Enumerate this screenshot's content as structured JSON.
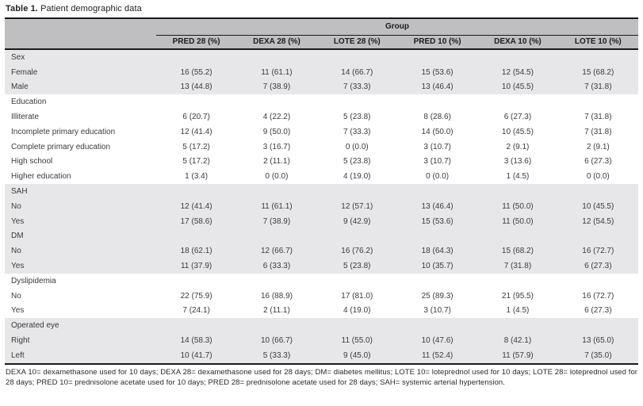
{
  "title": {
    "prefix": "Table 1.",
    "text": " Patient demographic data"
  },
  "table": {
    "group_header": "Group",
    "columns": [
      "PRED 28 (%)",
      "DEXA 28 (%)",
      "LOTE 28 (%)",
      "PRED 10 (%)",
      "DEXA 10 (%)",
      "LOTE 10 (%)"
    ],
    "sections": [
      {
        "name": "Sex",
        "shade": "gray",
        "rows": [
          {
            "label": "Female",
            "values": [
              "16 (55.2)",
              "11 (61.1)",
              "14 (66.7)",
              "15 (53.6)",
              "12 (54.5)",
              "15 (68.2)"
            ]
          },
          {
            "label": "Male",
            "values": [
              "13 (44.8)",
              "7 (38.9)",
              "7 (33.3)",
              "13 (46.4)",
              "10 (45.5)",
              "7 (31.8)"
            ]
          }
        ]
      },
      {
        "name": "Education",
        "shade": "white",
        "rows": [
          {
            "label": "Illiterate",
            "values": [
              "6 (20.7)",
              "4 (22.2)",
              "5 (23.8)",
              "8 (28.6)",
              "6 (27.3)",
              "7 (31.8)"
            ]
          },
          {
            "label": "Incomplete primary education",
            "values": [
              "12 (41.4)",
              "9 (50.0)",
              "7 (33.3)",
              "14 (50.0)",
              "10 (45.5)",
              "7 (31.8)"
            ]
          },
          {
            "label": "Complete primary education",
            "values": [
              "5 (17.2)",
              "3 (16.7)",
              "0 (0.0)",
              "3 (10.7)",
              "2 (9.1)",
              "2 (9.1)"
            ]
          },
          {
            "label": "High school",
            "values": [
              "5 (17.2)",
              "2 (11.1)",
              "5 (23.8)",
              "3 (10.7)",
              "3 (13.6)",
              "6 (27.3)"
            ]
          },
          {
            "label": "Higher education",
            "values": [
              "1 (3.4)",
              "0 (0.0)",
              "4 (19.0)",
              "0 (0.0)",
              "1 (4.5)",
              "0 (0.0)"
            ]
          }
        ]
      },
      {
        "name": "SAH",
        "shade": "gray",
        "rows": [
          {
            "label": "No",
            "values": [
              "12 (41.4)",
              "11 (61.1)",
              "12 (57.1)",
              "13 (46.4)",
              "11 (50.0)",
              "10 (45.5)"
            ]
          },
          {
            "label": "Yes",
            "values": [
              "17 (58.6)",
              "7 (38.9)",
              "9 (42.9)",
              "15 (53.6)",
              "11 (50.0)",
              "12 (54.5)"
            ]
          }
        ]
      },
      {
        "name": "DM",
        "shade": "gray",
        "rows": [
          {
            "label": "No",
            "values": [
              "18 (62.1)",
              "12 (66.7)",
              "16 (76.2)",
              "18 (64.3)",
              "15 (68.2)",
              "16 (72.7)"
            ]
          },
          {
            "label": "Yes",
            "values": [
              "11 (37.9)",
              "6 (33.3)",
              "5 (23.8)",
              "10 (35.7)",
              "7 (31.8)",
              "6 (27.3)"
            ]
          }
        ]
      },
      {
        "name": "Dyslipidemia",
        "shade": "white",
        "rows": [
          {
            "label": "No",
            "values": [
              "22 (75.9)",
              "16 (88.9)",
              "17 (81.0)",
              "25 (89.3)",
              "21 (95.5)",
              "16 (72.7)"
            ]
          },
          {
            "label": "Yes",
            "values": [
              "7 (24.1)",
              "2 (11.1)",
              "4 (19.0)",
              "3 (10.7)",
              "1 (4.5)",
              "6 (27.3)"
            ]
          }
        ]
      },
      {
        "name": "Operated eye",
        "shade": "gray",
        "rows": [
          {
            "label": "Right",
            "values": [
              "14 (58.3)",
              "10 (66.7)",
              "11 (55.0)",
              "10 (47.6)",
              "8 (42.1)",
              "13 (65.0)"
            ]
          },
          {
            "label": "Left",
            "values": [
              "10 (41.7)",
              "5 (33.3)",
              "9 (45.0)",
              "11 (52.4)",
              "11 (57.9)",
              "7 (35.0)"
            ]
          }
        ]
      }
    ]
  },
  "footnote": "DEXA 10= dexamethasone used for 10 days; DEXA 28= dexamethasone used for 28 days; DM= diabetes mellitus; LOTE 10= loteprednol used for 10 days; LOTE 28= loteprednol used for 28 days; PRED 10= prednisolone acetate used for 10 days; PRED 28= prednisolone acetate used for 28 days; SAH= systemic arterial hypertension.",
  "colors": {
    "header_bg": "#bfbfc2",
    "band_gray": "#e7e7e9",
    "band_white": "#ffffff",
    "border": "#1a1a1a"
  }
}
